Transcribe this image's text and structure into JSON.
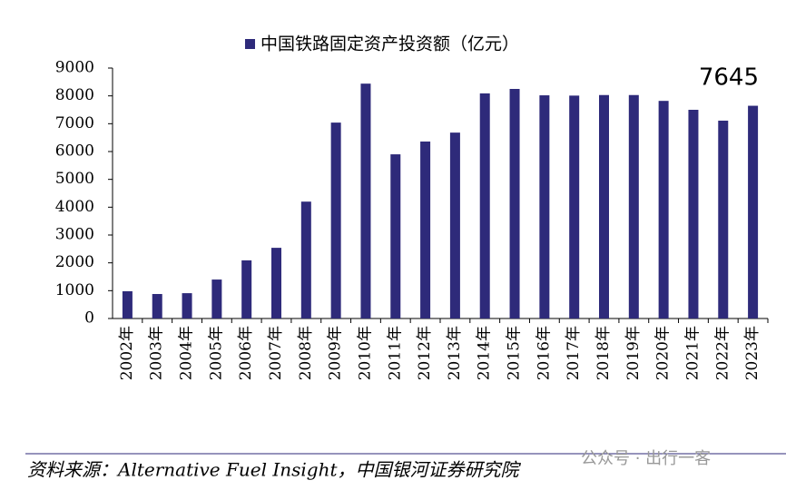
{
  "chart_data": {
    "type": "bar",
    "categories": [
      "2002年",
      "2003年",
      "2004年",
      "2005年",
      "2006年",
      "2007年",
      "2008年",
      "2009年",
      "2010年",
      "2011年",
      "2012年",
      "2013年",
      "2014年",
      "2015年",
      "2016年",
      "2017年",
      "2018年",
      "2019年",
      "2020年",
      "2021年",
      "2022年",
      "2023年"
    ],
    "series": [
      {
        "name": "中国铁路固定资产投资额（亿元）",
        "color": "#2e2a7a",
        "values": [
          980,
          880,
          910,
          1400,
          2090,
          2540,
          4200,
          7040,
          8440,
          5900,
          6360,
          6680,
          8090,
          8250,
          8020,
          8010,
          8030,
          8030,
          7820,
          7500,
          7110,
          7645
        ]
      }
    ],
    "ylim": [
      0,
      9000
    ],
    "yticks": [
      0,
      1000,
      2000,
      3000,
      4000,
      5000,
      6000,
      7000,
      8000,
      9000
    ],
    "source": "资料来源：Alternative Fuel Insight，中国银河证券研究院",
    "watermark": "公众号 · 出行一客"
  }
}
